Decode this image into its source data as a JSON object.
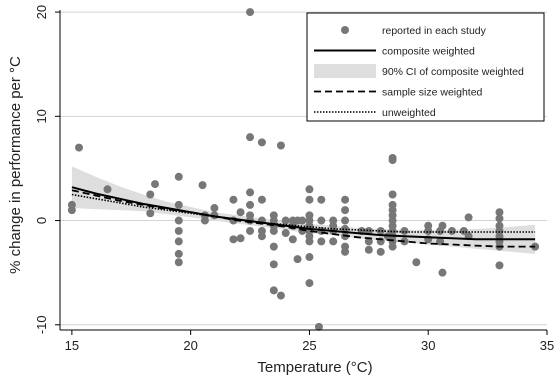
{
  "chart_data": {
    "type": "scatter",
    "xlabel": "Temperature (°C)",
    "ylabel": "% change in performance per °C",
    "xlim": [
      14.5,
      35
    ],
    "ylim": [
      -10.5,
      20.2
    ],
    "xticks": [
      15,
      20,
      25,
      30,
      35
    ],
    "yticks": [
      -10,
      0,
      10,
      20
    ],
    "grid": "horizontal",
    "legend_position": "top-right",
    "colors": {
      "points": "#777777",
      "ci_band": "#dedede",
      "lines": "#000000",
      "grid": "#d4d4d4"
    },
    "series": [
      {
        "name": "reported in each study",
        "kind": "scatter",
        "points": [
          [
            15.0,
            1.5
          ],
          [
            15.0,
            1.0
          ],
          [
            15.3,
            7.0
          ],
          [
            16.5,
            3.0
          ],
          [
            18.3,
            2.5
          ],
          [
            18.5,
            3.5
          ],
          [
            18.3,
            0.7
          ],
          [
            19.5,
            4.2
          ],
          [
            19.5,
            1.5
          ],
          [
            19.5,
            0.0
          ],
          [
            19.5,
            -1.0
          ],
          [
            19.5,
            -2.0
          ],
          [
            19.5,
            -3.2
          ],
          [
            19.5,
            -4.0
          ],
          [
            20.5,
            3.4
          ],
          [
            20.6,
            0.5
          ],
          [
            20.6,
            0.0
          ],
          [
            21.0,
            1.2
          ],
          [
            21.0,
            0.5
          ],
          [
            21.8,
            2.0
          ],
          [
            21.8,
            0.0
          ],
          [
            21.8,
            -1.8
          ],
          [
            22.1,
            -1.7
          ],
          [
            22.1,
            0.8
          ],
          [
            22.5,
            20.0
          ],
          [
            22.5,
            8.0
          ],
          [
            22.5,
            2.7
          ],
          [
            22.5,
            1.5
          ],
          [
            22.5,
            0.5
          ],
          [
            22.5,
            0.0
          ],
          [
            22.5,
            -1.0
          ],
          [
            23.0,
            7.5
          ],
          [
            23.0,
            2.0
          ],
          [
            23.0,
            0.0
          ],
          [
            23.0,
            -1.0
          ],
          [
            23.0,
            -1.5
          ],
          [
            23.5,
            0.5
          ],
          [
            23.5,
            0.0
          ],
          [
            23.5,
            -0.5
          ],
          [
            23.5,
            -1.0
          ],
          [
            23.5,
            -2.5
          ],
          [
            23.5,
            -4.2
          ],
          [
            23.5,
            -6.7
          ],
          [
            23.8,
            7.2
          ],
          [
            23.8,
            -7.2
          ],
          [
            24.0,
            0.0
          ],
          [
            24.0,
            -1.2
          ],
          [
            24.3,
            0.0
          ],
          [
            24.3,
            -0.5
          ],
          [
            24.3,
            -1.8
          ],
          [
            24.5,
            0.0
          ],
          [
            24.5,
            -3.7
          ],
          [
            24.7,
            -1.0
          ],
          [
            24.7,
            0.0
          ],
          [
            25.0,
            3.0
          ],
          [
            25.0,
            2.0
          ],
          [
            25.0,
            0.5
          ],
          [
            25.0,
            0.0
          ],
          [
            25.0,
            -0.5
          ],
          [
            25.0,
            -1.0
          ],
          [
            25.0,
            -1.5
          ],
          [
            25.0,
            -2.0
          ],
          [
            25.0,
            -3.5
          ],
          [
            25.0,
            -6.0
          ],
          [
            25.4,
            -10.2
          ],
          [
            25.5,
            2.0
          ],
          [
            25.5,
            0.0
          ],
          [
            25.5,
            -1.0
          ],
          [
            25.5,
            -2.0
          ],
          [
            26.0,
            0.0
          ],
          [
            26.0,
            -0.5
          ],
          [
            26.0,
            -1.0
          ],
          [
            26.0,
            -2.0
          ],
          [
            26.5,
            2.0
          ],
          [
            26.5,
            1.0
          ],
          [
            26.5,
            0.0
          ],
          [
            26.5,
            -0.8
          ],
          [
            26.5,
            -1.5
          ],
          [
            26.5,
            -2.5
          ],
          [
            26.5,
            -3.0
          ],
          [
            27.2,
            -1.0
          ],
          [
            27.5,
            -1.0
          ],
          [
            27.5,
            -2.0
          ],
          [
            27.5,
            -2.8
          ],
          [
            28.0,
            -1.0
          ],
          [
            28.0,
            -2.0
          ],
          [
            28.0,
            -3.0
          ],
          [
            28.3,
            -1.5
          ],
          [
            28.5,
            6.0
          ],
          [
            28.5,
            5.8
          ],
          [
            28.5,
            2.5
          ],
          [
            28.5,
            1.5
          ],
          [
            28.5,
            1.0
          ],
          [
            28.5,
            0.5
          ],
          [
            28.5,
            0.0
          ],
          [
            28.5,
            -0.5
          ],
          [
            28.5,
            -1.0
          ],
          [
            28.5,
            -1.5
          ],
          [
            28.5,
            -2.0
          ],
          [
            28.5,
            -2.5
          ],
          [
            29.0,
            -1.0
          ],
          [
            29.0,
            -2.0
          ],
          [
            29.5,
            -4.0
          ],
          [
            30.0,
            -1.0
          ],
          [
            30.0,
            -1.8
          ],
          [
            30.0,
            -0.5
          ],
          [
            30.5,
            -1.0
          ],
          [
            30.5,
            -2.0
          ],
          [
            30.6,
            -0.5
          ],
          [
            30.6,
            -5.0
          ],
          [
            31.0,
            -1.0
          ],
          [
            31.5,
            -1.0
          ],
          [
            31.7,
            0.3
          ],
          [
            31.7,
            -1.5
          ],
          [
            33.0,
            0.8
          ],
          [
            33.0,
            0.2
          ],
          [
            33.0,
            -0.5
          ],
          [
            33.0,
            -1.0
          ],
          [
            33.0,
            -1.5
          ],
          [
            33.0,
            -2.0
          ],
          [
            33.0,
            -2.5
          ],
          [
            33.0,
            -4.3
          ],
          [
            34.5,
            -2.5
          ]
        ]
      },
      {
        "name": "composite weighted",
        "kind": "line",
        "style": "solid",
        "x": [
          15,
          16,
          17,
          18,
          19,
          20,
          21,
          22,
          23,
          24,
          25,
          26,
          27,
          28,
          29,
          30,
          31,
          32,
          33,
          34,
          34.5
        ],
        "y": [
          3.2,
          2.6,
          2.1,
          1.6,
          1.2,
          0.8,
          0.4,
          0.1,
          -0.2,
          -0.5,
          -0.8,
          -1.0,
          -1.2,
          -1.4,
          -1.5,
          -1.6,
          -1.7,
          -1.8,
          -1.8,
          -1.8,
          -1.8
        ]
      },
      {
        "name": "90% CI of composite weighted",
        "kind": "band",
        "x": [
          15,
          16,
          17,
          18,
          19,
          20,
          21,
          22,
          23,
          24,
          25,
          26,
          27,
          28,
          29,
          30,
          31,
          32,
          33,
          34,
          34.5
        ],
        "lower": [
          1.2,
          1.1,
          1.0,
          0.9,
          0.6,
          0.3,
          0.0,
          -0.3,
          -0.6,
          -0.9,
          -1.2,
          -1.4,
          -1.7,
          -1.9,
          -2.1,
          -2.3,
          -2.5,
          -2.7,
          -2.9,
          -3.1,
          -3.2
        ],
        "upper": [
          5.2,
          4.2,
          3.3,
          2.5,
          1.8,
          1.3,
          0.8,
          0.5,
          0.2,
          -0.1,
          -0.3,
          -0.5,
          -0.7,
          -0.8,
          -0.9,
          -0.9,
          -0.9,
          -0.8,
          -0.7,
          -0.5,
          -0.4
        ]
      },
      {
        "name": "sample size weighted",
        "kind": "line",
        "style": "dashed",
        "x": [
          15,
          16,
          17,
          18,
          19,
          20,
          21,
          22,
          23,
          24,
          25,
          26,
          27,
          28,
          29,
          30,
          31,
          32,
          33,
          34,
          34.5
        ],
        "y": [
          2.9,
          2.4,
          1.9,
          1.5,
          1.1,
          0.8,
          0.4,
          0.0,
          -0.3,
          -0.6,
          -1.0,
          -1.3,
          -1.6,
          -1.8,
          -2.0,
          -2.2,
          -2.3,
          -2.4,
          -2.5,
          -2.5,
          -2.5
        ]
      },
      {
        "name": "unweighted",
        "kind": "line",
        "style": "dotted",
        "x": [
          15,
          16,
          17,
          18,
          19,
          20,
          21,
          22,
          23,
          24,
          25,
          26,
          27,
          28,
          29,
          30,
          31,
          32,
          33,
          34,
          34.5
        ],
        "y": [
          2.5,
          2.1,
          1.7,
          1.3,
          1.0,
          0.7,
          0.4,
          0.1,
          -0.2,
          -0.4,
          -0.6,
          -0.8,
          -0.9,
          -1.0,
          -1.1,
          -1.1,
          -1.1,
          -1.1,
          -1.1,
          -1.1,
          -1.1
        ]
      }
    ]
  }
}
